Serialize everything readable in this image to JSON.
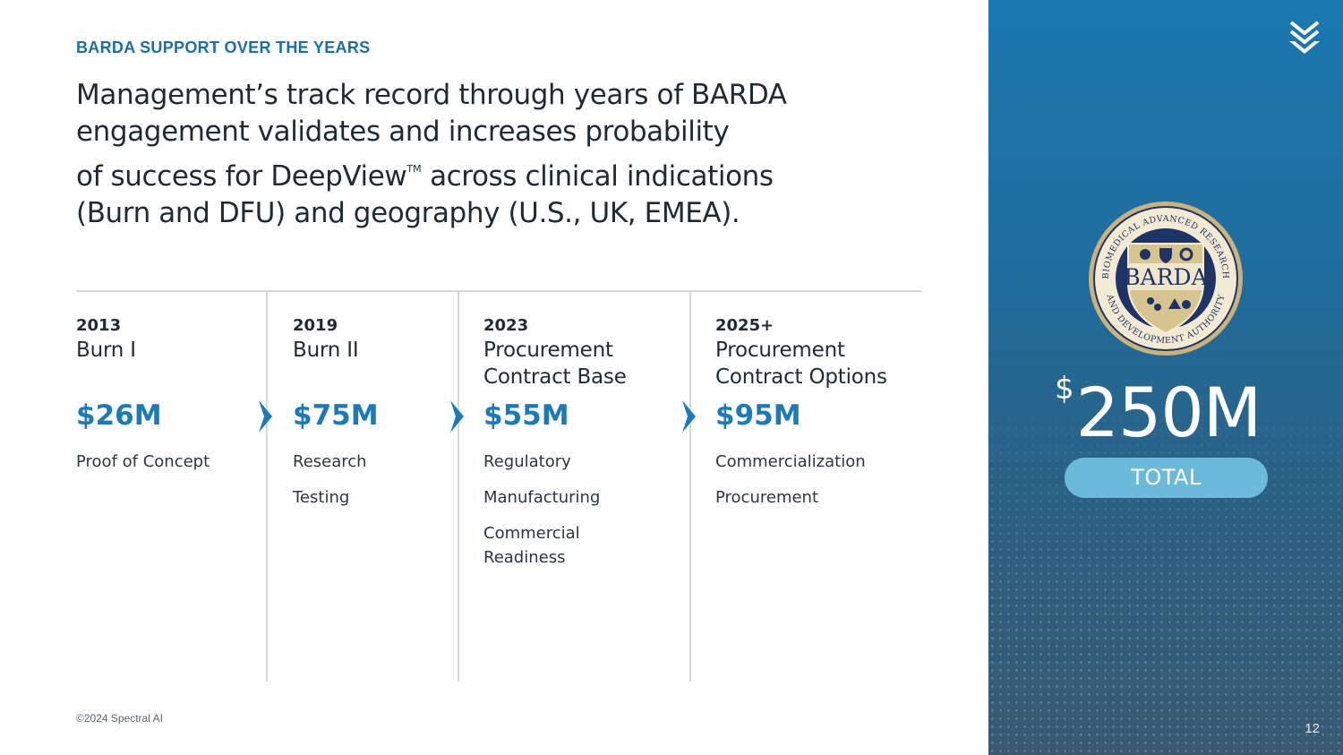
{
  "eyebrow": "BARDA SUPPORT OVER THE YEARS",
  "headline": {
    "line1": "Management’s track record through years of BARDA",
    "line2": "engagement validates and increases probability",
    "line3_pre": "of success for DeepView",
    "line3_tm": "TM",
    "line3_post": " across clinical indications",
    "line4": "(Burn and DFU) and geography (U.S., UK, EMEA)."
  },
  "timeline": [
    {
      "year": "2013",
      "title": "Burn I",
      "amount": "$26M",
      "items": [
        "Proof of Concept"
      ]
    },
    {
      "year": "2019",
      "title": "Burn II",
      "amount": "$75M",
      "items": [
        "Research",
        "Testing"
      ]
    },
    {
      "year": "2023",
      "title": "Procurement Contract Base",
      "amount": "$55M",
      "items": [
        "Regulatory",
        "Manufacturing",
        "Commercial Readiness"
      ]
    },
    {
      "year": "2025+",
      "title": "Procurement Contract Options",
      "amount": "$95M",
      "items": [
        "Commercialization",
        "Procurement"
      ]
    }
  ],
  "footer": "©2024 Spectral AI",
  "panel": {
    "seal_text_ring": "BIOMEDICAL ADVANCED RESEARCH AND DEVELOPMENT AUTHORITY",
    "seal_center": "BARDA",
    "total_currency": "$",
    "total_value": "250M",
    "total_label": "TOTAL",
    "page_number": "12"
  },
  "colors": {
    "accent_blue": "#1b7ab8",
    "panel_blue": "#1c78b0",
    "pill": "#6cbad9",
    "seal_gold": "#c9b37a",
    "seal_navy": "#1f3466"
  },
  "icons": [
    "chevron-right-icon",
    "double-chevron-down-icon"
  ]
}
